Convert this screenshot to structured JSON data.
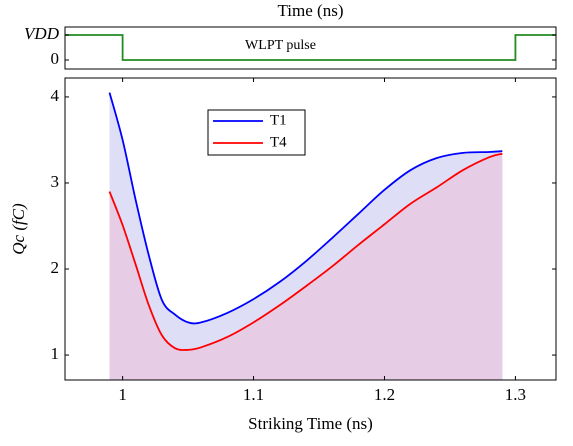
{
  "chart_data": [
    {
      "type": "line",
      "title": "Time (ns)",
      "annotation": "WLPT pulse",
      "x": [
        0.956,
        1.0,
        1.0,
        1.3,
        1.3,
        1.331
      ],
      "values": [
        1,
        1,
        0,
        0,
        1,
        1
      ],
      "color": "#228b22",
      "xlim": [
        0.956,
        1.331
      ],
      "ylim": [
        -0.36,
        1.32
      ],
      "yticks": [
        0,
        {
          "value": 1,
          "label": "VDD"
        }
      ]
    },
    {
      "type": "line",
      "xlabel": "Striking Time (ns)",
      "ylabel": "Qc  (fC)",
      "x": [
        0.99,
        1.0,
        1.01,
        1.02,
        1.03,
        1.04,
        1.05,
        1.06,
        1.08,
        1.1,
        1.12,
        1.14,
        1.16,
        1.18,
        1.2,
        1.22,
        1.24,
        1.26,
        1.28,
        1.29
      ],
      "series": [
        {
          "name": "T1",
          "color": "#0000ff",
          "fill": "#dedff7",
          "values": [
            4.05,
            3.5,
            2.8,
            2.16,
            1.64,
            1.47,
            1.38,
            1.38,
            1.49,
            1.65,
            1.85,
            2.09,
            2.36,
            2.64,
            2.92,
            3.15,
            3.29,
            3.35,
            3.36,
            3.37
          ]
        },
        {
          "name": "T4",
          "color": "#ff0000",
          "fill": "#e6cde5",
          "values": [
            2.9,
            2.51,
            2.05,
            1.58,
            1.23,
            1.08,
            1.06,
            1.09,
            1.21,
            1.38,
            1.58,
            1.8,
            2.03,
            2.28,
            2.52,
            2.76,
            2.95,
            3.15,
            3.3,
            3.34
          ]
        }
      ],
      "xlim": [
        0.956,
        1.331
      ],
      "ylim": [
        0.71,
        4.22
      ],
      "xticks": [
        1,
        1.1,
        1.2,
        1.3
      ],
      "yticks": [
        1,
        2,
        3,
        4
      ],
      "legend": "upper-left"
    }
  ]
}
